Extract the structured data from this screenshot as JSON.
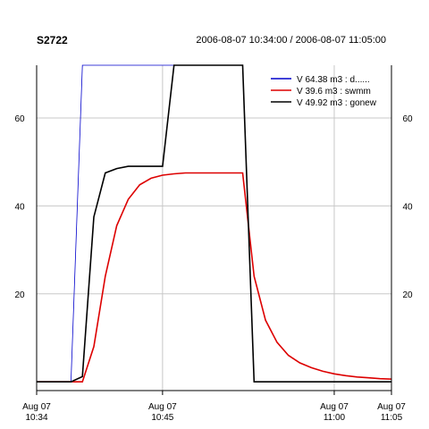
{
  "chart_data": {
    "type": "line",
    "title": "S2722",
    "time_range": "2006-08-07 10:34:00 / 2006-08-07 11:05:00",
    "xlabel": "",
    "ylabel": "",
    "x_ticks": [
      {
        "t": 0,
        "label_1": "Aug 07",
        "label_2": "10:34"
      },
      {
        "t": 11,
        "label_1": "Aug 07",
        "label_2": "10:45"
      },
      {
        "t": 26,
        "label_1": "Aug 07",
        "label_2": "11:00"
      },
      {
        "t": 31,
        "label_1": "Aug 07",
        "label_2": "11:05"
      }
    ],
    "x_grid": [
      11,
      26
    ],
    "y_ticks": [
      20,
      40,
      60
    ],
    "xlim": [
      0,
      31
    ],
    "ylim": [
      -2,
      72
    ],
    "grid": true,
    "legend_position": "top-right",
    "series": [
      {
        "name": "V 64.38 m3 : d......",
        "color": "#0000cc",
        "width": 0.8,
        "points": [
          [
            0,
            0
          ],
          [
            3,
            0
          ],
          [
            4,
            72
          ],
          [
            18,
            72
          ],
          [
            19,
            0
          ],
          [
            31,
            0
          ]
        ]
      },
      {
        "name": "V 39.6 m3 : swmm",
        "color": "#dd0000",
        "width": 1.6,
        "points": [
          [
            0,
            0
          ],
          [
            4,
            0
          ],
          [
            5,
            8
          ],
          [
            6,
            24
          ],
          [
            7,
            35.5
          ],
          [
            8,
            41.5
          ],
          [
            9,
            44.8
          ],
          [
            10,
            46.3
          ],
          [
            11,
            47
          ],
          [
            12,
            47.3
          ],
          [
            13,
            47.5
          ],
          [
            14,
            47.5
          ],
          [
            15,
            47.5
          ],
          [
            16,
            47.5
          ],
          [
            17,
            47.5
          ],
          [
            18,
            47.5
          ],
          [
            19,
            24
          ],
          [
            20,
            14
          ],
          [
            21,
            9
          ],
          [
            22,
            6
          ],
          [
            23,
            4.3
          ],
          [
            24,
            3.2
          ],
          [
            25,
            2.4
          ],
          [
            26,
            1.8
          ],
          [
            27,
            1.4
          ],
          [
            28,
            1.1
          ],
          [
            29,
            0.9
          ],
          [
            30,
            0.7
          ],
          [
            31,
            0.6
          ]
        ]
      },
      {
        "name": "V 49.92 m3 : gonew",
        "color": "#000000",
        "width": 1.6,
        "points": [
          [
            0,
            0
          ],
          [
            3,
            0
          ],
          [
            4,
            1.2
          ],
          [
            5,
            37.5
          ],
          [
            6,
            47.5
          ],
          [
            7,
            48.5
          ],
          [
            8,
            49
          ],
          [
            9,
            49
          ],
          [
            10,
            49
          ],
          [
            11,
            49
          ],
          [
            12,
            72
          ],
          [
            18,
            72
          ],
          [
            19,
            0
          ],
          [
            31,
            0
          ]
        ]
      }
    ]
  }
}
